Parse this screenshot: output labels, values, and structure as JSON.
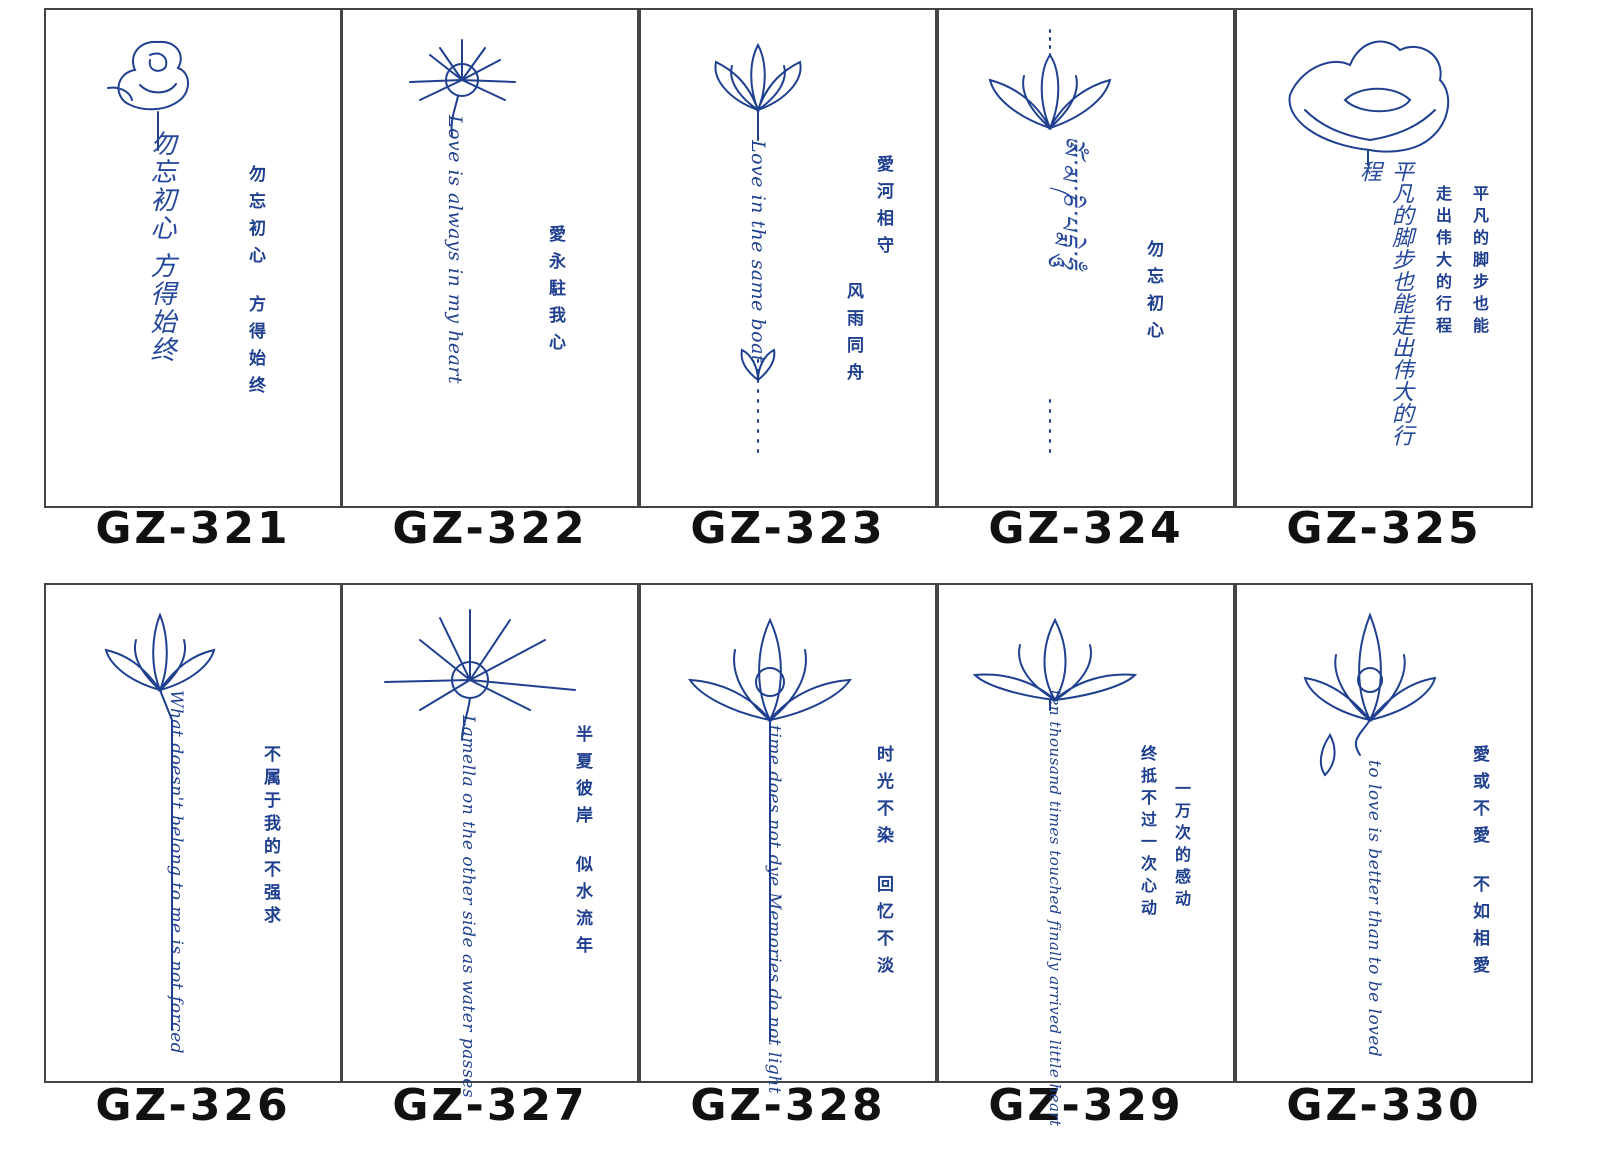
{
  "colors": {
    "ink": "#1f3f8f",
    "border": "#444444",
    "label": "#111111"
  },
  "items": [
    {
      "code": "GZ-321",
      "flower": "rose-icon",
      "script": "勿忘初心 方得始终",
      "lines": [
        "勿忘初心",
        "方得始终"
      ]
    },
    {
      "code": "GZ-322",
      "flower": "spider-lily-icon",
      "script": "Love is always in my heart",
      "lines": [
        "愛永駐我心"
      ]
    },
    {
      "code": "GZ-323",
      "flower": "lotus-icon",
      "script": "Love in the same boat",
      "lines": [
        "愛河相守",
        "风雨同舟"
      ]
    },
    {
      "code": "GZ-324",
      "flower": "lotus-icon",
      "script": "ཨོཾ་མ་ཎི་པདྨེ་ཧཱུྃ",
      "lines": [
        "勿忘初心"
      ]
    },
    {
      "code": "GZ-325",
      "flower": "peony-icon",
      "script": "平凡的脚步也能走出伟大的行程",
      "lines": [
        "平凡的脚步也能",
        "走出伟大的行程"
      ]
    },
    {
      "code": "GZ-326",
      "flower": "lotus-icon",
      "script": "What doesn't belong to me is not forced",
      "lines": [
        "不属于我的不强求"
      ]
    },
    {
      "code": "GZ-327",
      "flower": "spider-lily-icon",
      "script": "Lamella on the other side as water passes",
      "lines": [
        "半夏彼岸",
        "似水流年"
      ]
    },
    {
      "code": "GZ-328",
      "flower": "lotus-icon",
      "script": "time does not dye Memories do not light",
      "lines": [
        "时光不染",
        "回忆不淡"
      ]
    },
    {
      "code": "GZ-329",
      "flower": "lotus-icon",
      "script": "ten thousand times touched finally arrived little heart",
      "lines": [
        "一万次的感动",
        "终抵不过一次心动"
      ]
    },
    {
      "code": "GZ-330",
      "flower": "lotus-icon",
      "script": "to love is better than to be loved",
      "lines": [
        "愛或不愛",
        "不如相愛"
      ]
    }
  ]
}
